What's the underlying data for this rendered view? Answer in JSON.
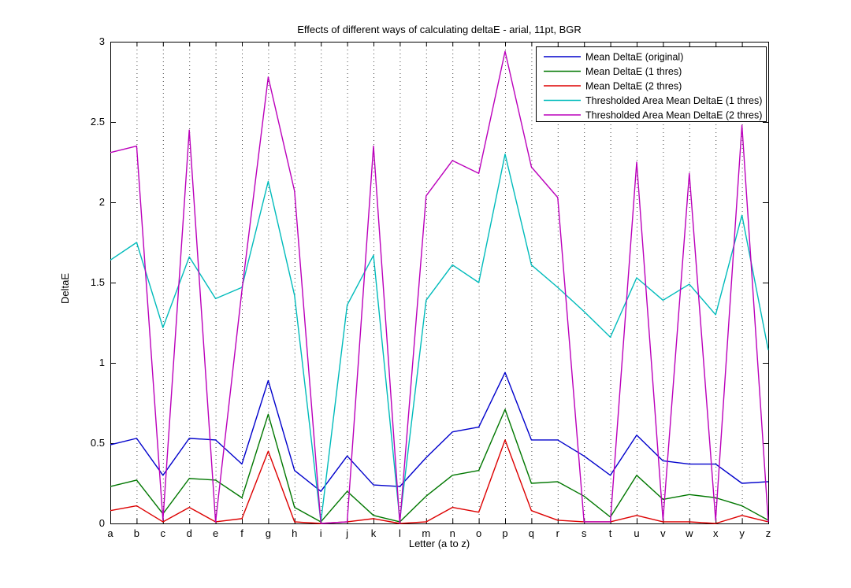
{
  "figure": {
    "title": "Effects of different ways of calculating deltaE - arial, 11pt, BGR",
    "xlabel": "Letter (a to z)",
    "ylabel": "DeltaE",
    "background_color": "#ffffff",
    "axis_color": "#000000",
    "grid_style": "vertical dotted lines at each x tick"
  },
  "chart_data": {
    "type": "line",
    "title": "Effects of different ways of calculating deltaE - arial, 11pt, BGR",
    "xlabel": "Letter (a to z)",
    "ylabel": "DeltaE",
    "categories": [
      "a",
      "b",
      "c",
      "d",
      "e",
      "f",
      "g",
      "h",
      "i",
      "j",
      "k",
      "l",
      "m",
      "n",
      "o",
      "p",
      "q",
      "r",
      "s",
      "t",
      "u",
      "v",
      "w",
      "x",
      "y",
      "z"
    ],
    "ylim": [
      0,
      3
    ],
    "yticks": [
      0,
      0.5,
      1,
      1.5,
      2,
      2.5,
      3
    ],
    "ytick_labels": [
      "0",
      "0.5",
      "1",
      "1.5",
      "2",
      "2.5",
      "3"
    ],
    "grid": "x-only-dotted",
    "legend_position": "top-right",
    "series": [
      {
        "name": "Mean DeltaE (original)",
        "color": "#0000CC",
        "values": [
          0.49,
          0.53,
          0.3,
          0.53,
          0.52,
          0.37,
          0.89,
          0.33,
          0.2,
          0.42,
          0.24,
          0.23,
          0.41,
          0.57,
          0.6,
          0.94,
          0.52,
          0.52,
          0.42,
          0.3,
          0.55,
          0.39,
          0.37,
          0.37,
          0.25,
          0.26
        ]
      },
      {
        "name": "Mean DeltaE (1 thres)",
        "color": "#007700",
        "values": [
          0.23,
          0.27,
          0.06,
          0.28,
          0.27,
          0.16,
          0.68,
          0.1,
          0.01,
          0.2,
          0.05,
          0.01,
          0.17,
          0.3,
          0.33,
          0.71,
          0.25,
          0.26,
          0.17,
          0.04,
          0.3,
          0.15,
          0.18,
          0.16,
          0.11,
          0.02
        ]
      },
      {
        "name": "Mean DeltaE (2 thres)",
        "color": "#DD0000",
        "values": [
          0.08,
          0.11,
          0.01,
          0.1,
          0.01,
          0.03,
          0.45,
          0.01,
          0.0,
          0.01,
          0.03,
          0.0,
          0.01,
          0.1,
          0.07,
          0.52,
          0.08,
          0.02,
          0.01,
          0.01,
          0.05,
          0.01,
          0.01,
          0.0,
          0.05,
          0.01
        ]
      },
      {
        "name": "Thresholded Area Mean DeltaE (1 thres)",
        "color": "#00BBBB",
        "values": [
          1.64,
          1.75,
          1.22,
          1.66,
          1.4,
          1.47,
          2.13,
          1.42,
          0.01,
          1.36,
          1.67,
          0.02,
          1.39,
          1.61,
          1.5,
          2.3,
          1.61,
          1.47,
          1.32,
          1.16,
          1.53,
          1.39,
          1.49,
          1.3,
          1.92,
          1.08
        ]
      },
      {
        "name": "Thresholded Area Mean DeltaE (2 thres)",
        "color": "#BB00BB",
        "values": [
          2.31,
          2.35,
          0.02,
          2.45,
          0.01,
          1.45,
          2.78,
          2.07,
          0.0,
          0.01,
          2.35,
          0.0,
          2.04,
          2.26,
          2.18,
          2.94,
          2.22,
          2.03,
          0.01,
          0.01,
          2.25,
          0.02,
          2.18,
          0.02,
          2.48,
          0.01
        ]
      }
    ]
  }
}
